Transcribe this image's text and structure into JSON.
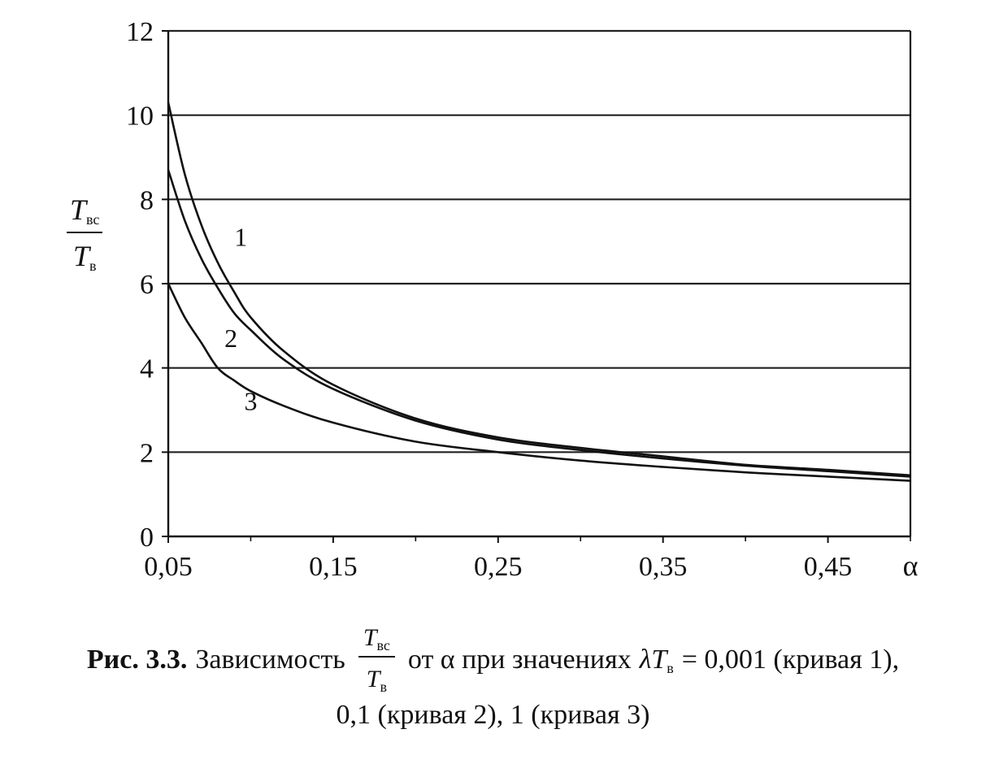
{
  "chart_data": {
    "type": "line",
    "title": "",
    "xlabel": "α",
    "ylabel": {
      "main_num": "T",
      "sub_num": "вс",
      "main_den": "T",
      "sub_den": "в"
    },
    "xlim": [
      0.05,
      0.5
    ],
    "ylim": [
      0,
      12
    ],
    "x_ticks": [
      0.05,
      0.15,
      0.25,
      0.35,
      0.45
    ],
    "x_tick_labels": [
      "0,05",
      "0,15",
      "0,25",
      "0,35",
      "0,45"
    ],
    "y_ticks": [
      0,
      2,
      4,
      6,
      8,
      10,
      12
    ],
    "y_tick_labels": [
      "0",
      "2",
      "4",
      "6",
      "8",
      "10",
      "12"
    ],
    "grid": "horizontal",
    "series": [
      {
        "name": "1",
        "label_at": [
          0.094,
          6.9
        ],
        "x": [
          0.05,
          0.06,
          0.07,
          0.08,
          0.09,
          0.1,
          0.12,
          0.15,
          0.2,
          0.25,
          0.3,
          0.35,
          0.4,
          0.45,
          0.5
        ],
        "values": [
          10.3,
          8.6,
          7.4,
          6.5,
          5.8,
          5.2,
          4.4,
          3.6,
          2.8,
          2.35,
          2.1,
          1.9,
          1.7,
          1.58,
          1.45
        ]
      },
      {
        "name": "2",
        "label_at": [
          0.088,
          4.5
        ],
        "x": [
          0.05,
          0.06,
          0.07,
          0.08,
          0.09,
          0.1,
          0.12,
          0.15,
          0.2,
          0.25,
          0.3,
          0.35,
          0.4,
          0.45,
          0.5
        ],
        "values": [
          8.7,
          7.5,
          6.6,
          5.9,
          5.3,
          4.9,
          4.2,
          3.5,
          2.75,
          2.3,
          2.05,
          1.85,
          1.68,
          1.55,
          1.42
        ]
      },
      {
        "name": "3",
        "label_at": [
          0.1,
          3.0
        ],
        "x": [
          0.05,
          0.06,
          0.07,
          0.08,
          0.09,
          0.1,
          0.12,
          0.15,
          0.2,
          0.25,
          0.3,
          0.35,
          0.4,
          0.45,
          0.5
        ],
        "values": [
          6.0,
          5.2,
          4.6,
          4.0,
          3.7,
          3.45,
          3.1,
          2.7,
          2.25,
          2.0,
          1.8,
          1.65,
          1.52,
          1.42,
          1.32
        ]
      }
    ]
  },
  "caption": {
    "prefix_bold": "Рис. 3.3.",
    "text1": "Зависимость",
    "frac_num": "T",
    "frac_num_sub": "вс",
    "frac_den": "T",
    "frac_den_sub": "в",
    "text2": "от α при значениях",
    "lambda": "λT",
    "lambda_sub": "в",
    "text3": "= 0,001 (кривая 1),",
    "line2": "0,1 (кривая 2), 1 (кривая 3)"
  },
  "colors": {
    "ink": "#111111",
    "grid": "#222222",
    "background": "#ffffff"
  }
}
